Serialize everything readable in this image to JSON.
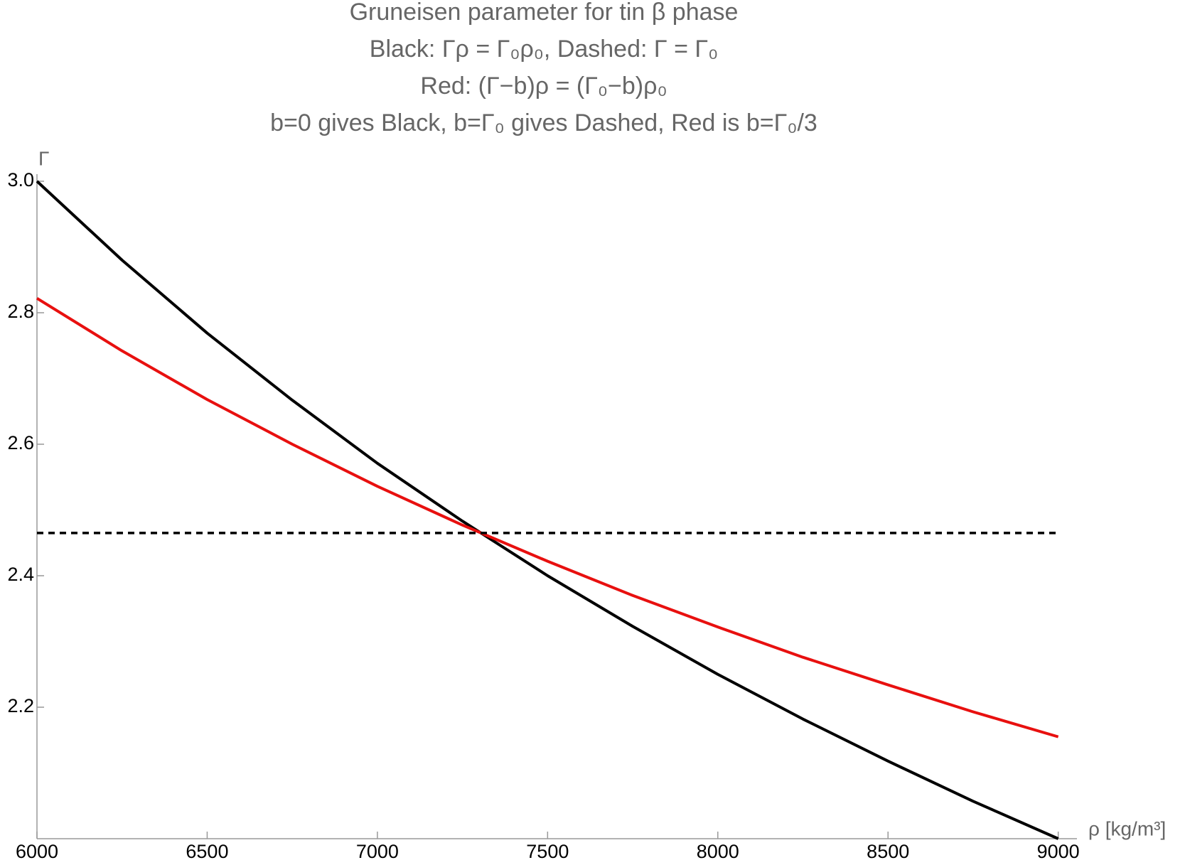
{
  "chart_data": {
    "type": "line",
    "title": [
      "Gruneisen parameter for tin β phase",
      "Black: Γρ = Γ₀ρ₀, Dashed: Γ = Γ₀",
      "Red:  (Γ−b)ρ = (Γ₀−b)ρ₀",
      "b=0 gives Black, b=Γ₀ gives Dashed, Red is b=Γ₀/3"
    ],
    "x_label": "ρ [kg/m³]",
    "y_label": "Γ",
    "x": [
      6000,
      6250,
      6500,
      6750,
      7000,
      7250,
      7500,
      7750,
      8000,
      8250,
      8500,
      8750,
      9000
    ],
    "series": [
      {
        "name": "Black",
        "color": "#000000",
        "dash": false,
        "values": [
          3.0,
          2.88,
          2.769,
          2.667,
          2.571,
          2.483,
          2.4,
          2.323,
          2.25,
          2.182,
          2.118,
          2.057,
          2.0
        ]
      },
      {
        "name": "Red",
        "color": "#e8100f",
        "dash": false,
        "values": [
          2.822,
          2.742,
          2.668,
          2.6,
          2.536,
          2.477,
          2.422,
          2.37,
          2.322,
          2.276,
          2.234,
          2.193,
          2.155
        ]
      },
      {
        "name": "Dashed",
        "color": "#000000",
        "dash": true,
        "values": [
          2.465,
          2.465,
          2.465,
          2.465,
          2.465,
          2.465,
          2.465,
          2.465,
          2.465,
          2.465,
          2.465,
          2.465,
          2.465
        ]
      }
    ],
    "xlim": [
      6000,
      9055
    ],
    "ylim": [
      2.0,
      3.0
    ],
    "xticks": [
      6000,
      6500,
      7000,
      7500,
      8000,
      8500,
      9000
    ],
    "yticks": [
      2.2,
      2.4,
      2.6,
      2.8,
      {
        "value": 3,
        "label": "3.0"
      }
    ]
  }
}
